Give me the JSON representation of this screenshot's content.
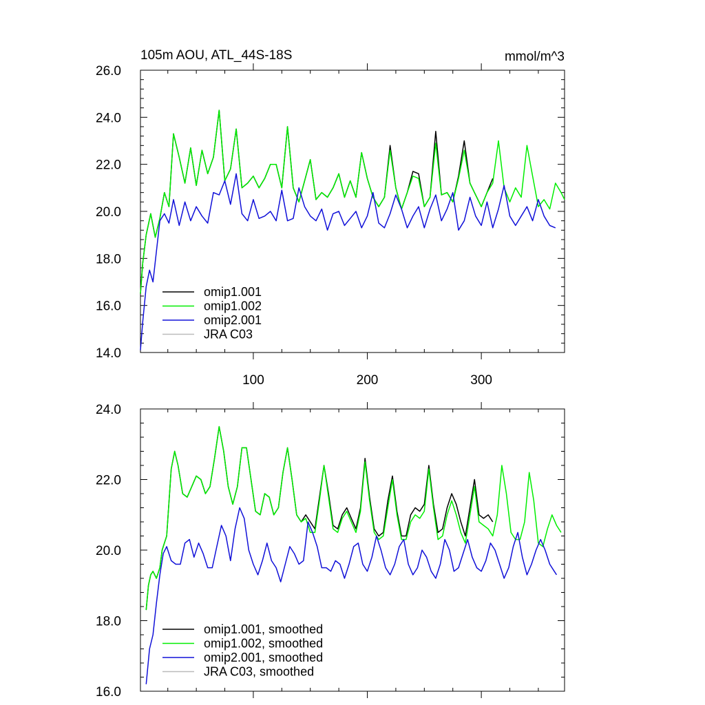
{
  "chart_data": [
    {
      "type": "line",
      "title": "105m AOU, ATL_44S-18S",
      "units": "mmol/m^3",
      "xlim": [
        1,
        373
      ],
      "ylim": [
        14,
        26
      ],
      "xticks": [
        100,
        200,
        300
      ],
      "xtick_labels": [
        "100",
        "200",
        "300"
      ],
      "yticks": [
        14,
        16,
        18,
        20,
        22,
        24,
        26
      ],
      "ytick_labels": [
        "14.0",
        "16.0",
        "18.0",
        "20.0",
        "22.0",
        "24.0",
        "26.0"
      ],
      "legend_position": "bottom-left",
      "series": [
        {
          "name": "omip1.001",
          "color": "#000000",
          "x": [
            1,
            3,
            6,
            10,
            14,
            18,
            22,
            26,
            30,
            35,
            40,
            45,
            50,
            55,
            60,
            65,
            70,
            75,
            80,
            85,
            90,
            95,
            100,
            105,
            110,
            115,
            120,
            125,
            130,
            135,
            140,
            145,
            150,
            155,
            160,
            165,
            170,
            175,
            180,
            185,
            190,
            195,
            200,
            205,
            210,
            215,
            220,
            225,
            230,
            235,
            240,
            245,
            250,
            255,
            260,
            265,
            270,
            275,
            280,
            285,
            290,
            295,
            300,
            305,
            310
          ],
          "y": [
            16.5,
            17.8,
            19.0,
            19.9,
            18.9,
            19.7,
            20.8,
            20.2,
            23.3,
            22.3,
            21.2,
            22.7,
            21.1,
            22.6,
            21.6,
            22.3,
            24.3,
            21.3,
            21.8,
            23.5,
            21.0,
            21.2,
            21.5,
            21.0,
            21.4,
            22.0,
            22.0,
            21.0,
            23.6,
            21.0,
            20.4,
            21.3,
            22.2,
            20.5,
            20.8,
            20.6,
            21.0,
            21.6,
            20.6,
            21.3,
            20.6,
            22.5,
            21.4,
            20.6,
            20.2,
            20.6,
            22.8,
            21.0,
            20.1,
            20.8,
            21.7,
            21.6,
            20.2,
            20.6,
            23.4,
            20.7,
            20.8,
            20.4,
            21.5,
            23.0,
            21.2,
            20.7,
            20.2,
            20.8,
            21.4
          ]
        },
        {
          "name": "omip1.002",
          "color": "#00ee00",
          "x": [
            1,
            3,
            6,
            10,
            14,
            18,
            22,
            26,
            30,
            35,
            40,
            45,
            50,
            55,
            60,
            65,
            70,
            75,
            80,
            85,
            90,
            95,
            100,
            105,
            110,
            115,
            120,
            125,
            130,
            135,
            140,
            145,
            150,
            155,
            160,
            165,
            170,
            175,
            180,
            185,
            190,
            195,
            200,
            205,
            210,
            215,
            220,
            225,
            230,
            235,
            240,
            245,
            250,
            255,
            260,
            265,
            270,
            275,
            280,
            285,
            290,
            295,
            300,
            305,
            310,
            315,
            320,
            325,
            330,
            335,
            340,
            345,
            350,
            355,
            360,
            365,
            370,
            373
          ],
          "y": [
            16.5,
            17.8,
            19.0,
            19.9,
            18.9,
            19.7,
            20.8,
            20.2,
            23.3,
            22.3,
            21.2,
            22.7,
            21.1,
            22.6,
            21.6,
            22.3,
            24.3,
            21.3,
            21.8,
            23.5,
            21.0,
            21.2,
            21.5,
            21.0,
            21.4,
            22.0,
            22.0,
            21.0,
            23.6,
            21.0,
            20.4,
            21.3,
            22.2,
            20.5,
            20.8,
            20.6,
            21.0,
            21.6,
            20.6,
            21.3,
            20.6,
            22.5,
            21.4,
            20.6,
            20.2,
            20.6,
            22.6,
            21.0,
            20.1,
            20.8,
            21.5,
            21.4,
            20.2,
            20.6,
            22.9,
            20.7,
            20.8,
            20.4,
            21.4,
            22.6,
            21.2,
            20.7,
            20.2,
            20.8,
            21.2,
            23.0,
            21.0,
            20.4,
            21.0,
            20.6,
            22.8,
            21.5,
            20.2,
            20.5,
            20.1,
            21.2,
            20.8,
            20.5
          ]
        },
        {
          "name": "omip2.001",
          "color": "#1010d8",
          "x": [
            1,
            3,
            6,
            9,
            12,
            15,
            18,
            22,
            26,
            30,
            35,
            40,
            45,
            50,
            55,
            60,
            65,
            70,
            75,
            80,
            85,
            90,
            95,
            100,
            105,
            110,
            115,
            120,
            125,
            130,
            135,
            140,
            145,
            150,
            155,
            160,
            165,
            170,
            175,
            180,
            185,
            190,
            195,
            200,
            205,
            210,
            215,
            220,
            225,
            230,
            235,
            240,
            245,
            250,
            255,
            260,
            265,
            270,
            275,
            280,
            285,
            290,
            295,
            300,
            305,
            310,
            315,
            320,
            325,
            330,
            335,
            340,
            345,
            350,
            355,
            360,
            365
          ],
          "y": [
            14.1,
            15.3,
            16.8,
            17.5,
            17.0,
            18.3,
            19.6,
            19.9,
            19.5,
            20.5,
            19.4,
            20.4,
            19.6,
            20.2,
            19.8,
            19.5,
            20.8,
            20.7,
            21.3,
            20.3,
            21.6,
            19.9,
            19.6,
            20.5,
            19.7,
            19.8,
            20.0,
            19.6,
            20.9,
            19.6,
            19.7,
            21.0,
            20.2,
            19.8,
            19.6,
            20.1,
            19.2,
            19.9,
            20.0,
            19.4,
            19.7,
            20.0,
            19.3,
            19.8,
            20.8,
            19.5,
            19.3,
            19.9,
            20.7,
            20.1,
            19.3,
            19.8,
            20.2,
            19.3,
            20.1,
            20.7,
            19.6,
            20.1,
            20.8,
            19.2,
            19.6,
            20.6,
            19.8,
            19.4,
            20.4,
            19.3,
            20.1,
            21.1,
            19.8,
            19.4,
            19.8,
            20.2,
            19.6,
            20.5,
            19.8,
            19.4,
            19.3
          ]
        },
        {
          "name": "JRA C03",
          "color": "#bbbbbb",
          "x": [],
          "y": []
        }
      ]
    },
    {
      "type": "line",
      "title": "",
      "xlim": [
        1,
        373
      ],
      "ylim": [
        16,
        24
      ],
      "xticks": [
        100,
        200,
        300
      ],
      "xtick_labels": [],
      "yticks": [
        16,
        18,
        20,
        22,
        24
      ],
      "ytick_labels": [
        "16.0",
        "18.0",
        "20.0",
        "22.0",
        "24.0"
      ],
      "legend_position": "bottom-left",
      "series": [
        {
          "name": "omip1.001, smoothed",
          "color": "#000000",
          "x": [
            6,
            8,
            10,
            12,
            15,
            18,
            20,
            24,
            28,
            31,
            34,
            38,
            42,
            46,
            50,
            54,
            58,
            62,
            66,
            70,
            74,
            78,
            82,
            86,
            90,
            94,
            98,
            102,
            106,
            110,
            114,
            118,
            122,
            126,
            130,
            134,
            138,
            142,
            146,
            150,
            154,
            158,
            162,
            166,
            170,
            174,
            178,
            182,
            186,
            190,
            194,
            198,
            202,
            206,
            210,
            214,
            218,
            222,
            226,
            230,
            234,
            238,
            242,
            246,
            250,
            254,
            258,
            262,
            266,
            270,
            274,
            278,
            282,
            286,
            290,
            294,
            298,
            302,
            306,
            310
          ],
          "y": [
            18.3,
            19.0,
            19.3,
            19.4,
            19.2,
            19.5,
            20.0,
            20.4,
            22.3,
            22.8,
            22.4,
            21.6,
            21.5,
            21.8,
            22.1,
            22.0,
            21.6,
            21.8,
            22.6,
            23.5,
            22.8,
            21.8,
            21.3,
            21.8,
            22.9,
            22.9,
            22.0,
            21.1,
            21.0,
            21.6,
            21.5,
            21.0,
            21.2,
            22.2,
            22.9,
            22.0,
            21.0,
            20.8,
            21.0,
            20.8,
            20.6,
            21.5,
            22.4,
            21.6,
            20.7,
            20.6,
            21.0,
            21.2,
            20.9,
            20.6,
            21.2,
            22.6,
            21.5,
            20.6,
            20.4,
            20.5,
            21.4,
            22.1,
            21.1,
            20.4,
            20.4,
            21.0,
            21.2,
            21.1,
            21.3,
            22.4,
            21.3,
            20.5,
            20.6,
            21.2,
            21.6,
            21.3,
            20.8,
            20.4,
            21.2,
            22.0,
            21.0,
            20.9,
            21.0,
            20.8
          ]
        },
        {
          "name": "omip1.002, smoothed",
          "color": "#00ee00",
          "x": [
            6,
            8,
            10,
            12,
            15,
            18,
            20,
            24,
            28,
            31,
            34,
            38,
            42,
            46,
            50,
            54,
            58,
            62,
            66,
            70,
            74,
            78,
            82,
            86,
            90,
            94,
            98,
            102,
            106,
            110,
            114,
            118,
            122,
            126,
            130,
            134,
            138,
            142,
            146,
            150,
            154,
            158,
            162,
            166,
            170,
            174,
            178,
            182,
            186,
            190,
            194,
            198,
            202,
            206,
            210,
            214,
            218,
            222,
            226,
            230,
            234,
            238,
            242,
            246,
            250,
            254,
            258,
            262,
            266,
            270,
            274,
            278,
            282,
            286,
            290,
            294,
            298,
            302,
            306,
            310,
            314,
            318,
            322,
            326,
            330,
            334,
            338,
            342,
            346,
            350,
            354,
            358,
            362,
            366,
            370
          ],
          "y": [
            18.3,
            19.0,
            19.3,
            19.4,
            19.2,
            19.5,
            20.0,
            20.4,
            22.3,
            22.8,
            22.4,
            21.6,
            21.5,
            21.8,
            22.1,
            22.0,
            21.6,
            21.8,
            22.6,
            23.5,
            22.8,
            21.8,
            21.3,
            21.8,
            22.9,
            22.9,
            22.0,
            21.1,
            21.0,
            21.6,
            21.5,
            21.0,
            21.2,
            22.2,
            22.9,
            22.0,
            21.0,
            20.8,
            20.9,
            20.5,
            20.5,
            21.4,
            22.4,
            21.5,
            20.6,
            20.5,
            20.9,
            21.1,
            20.8,
            20.5,
            21.1,
            22.5,
            21.4,
            20.5,
            20.3,
            20.4,
            21.2,
            22.0,
            21.0,
            20.3,
            20.3,
            20.8,
            21.0,
            20.9,
            21.1,
            22.3,
            21.2,
            20.3,
            20.4,
            21.0,
            21.4,
            21.0,
            20.5,
            20.2,
            21.0,
            21.8,
            20.8,
            20.7,
            20.6,
            20.4,
            21.0,
            22.4,
            21.6,
            20.5,
            20.3,
            20.3,
            20.8,
            22.2,
            21.4,
            20.2,
            20.1,
            20.6,
            21.0,
            20.7,
            20.5
          ]
        },
        {
          "name": "omip2.001, smoothed",
          "color": "#1010d8",
          "x": [
            6,
            9,
            12,
            15,
            18,
            21,
            24,
            28,
            32,
            36,
            40,
            44,
            48,
            52,
            56,
            60,
            64,
            68,
            72,
            76,
            80,
            84,
            88,
            92,
            96,
            100,
            104,
            108,
            112,
            116,
            120,
            124,
            128,
            132,
            136,
            140,
            144,
            148,
            152,
            156,
            160,
            164,
            168,
            172,
            176,
            180,
            184,
            188,
            192,
            196,
            200,
            204,
            208,
            212,
            216,
            220,
            224,
            228,
            232,
            236,
            240,
            244,
            248,
            252,
            256,
            260,
            264,
            268,
            272,
            276,
            280,
            284,
            288,
            292,
            296,
            300,
            304,
            308,
            312,
            316,
            320,
            324,
            328,
            332,
            336,
            340,
            344,
            348,
            352,
            356,
            360,
            364,
            366
          ],
          "y": [
            16.2,
            17.2,
            17.6,
            18.5,
            19.3,
            19.9,
            20.1,
            19.7,
            19.6,
            19.6,
            20.2,
            20.3,
            19.8,
            20.2,
            19.9,
            19.5,
            19.5,
            20.1,
            20.7,
            20.4,
            19.7,
            20.6,
            21.2,
            20.9,
            20.0,
            19.6,
            19.3,
            19.7,
            20.2,
            19.7,
            19.5,
            19.1,
            19.6,
            20.1,
            19.9,
            19.6,
            19.7,
            20.8,
            20.5,
            20.1,
            19.5,
            19.5,
            19.4,
            19.7,
            19.6,
            19.2,
            19.6,
            20.1,
            20.2,
            19.6,
            19.4,
            19.8,
            20.4,
            20.0,
            19.5,
            19.3,
            19.6,
            20.1,
            20.3,
            19.6,
            19.3,
            19.5,
            20.0,
            19.8,
            19.4,
            19.2,
            19.6,
            20.3,
            20.0,
            19.4,
            19.5,
            19.9,
            20.3,
            19.8,
            19.5,
            19.4,
            19.7,
            20.2,
            20.0,
            19.6,
            19.2,
            19.5,
            20.1,
            20.5,
            19.8,
            19.3,
            19.6,
            20.0,
            20.3,
            20.0,
            19.6,
            19.4,
            19.3
          ]
        },
        {
          "name": "JRA C03, smoothed",
          "color": "#bbbbbb",
          "x": [],
          "y": []
        }
      ]
    }
  ]
}
